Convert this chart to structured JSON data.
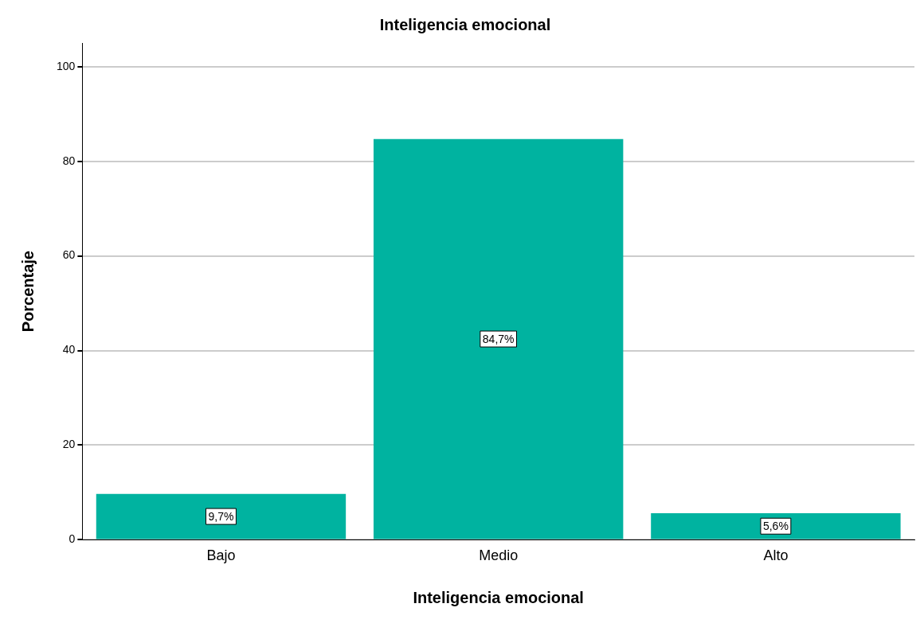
{
  "chart_data": {
    "type": "bar",
    "title": "Inteligencia emocional",
    "xlabel": "Inteligencia emocional",
    "ylabel": "Porcentaje",
    "categories": [
      "Bajo",
      "Medio",
      "Alto"
    ],
    "values": [
      9.7,
      84.7,
      5.6
    ],
    "value_labels": [
      "9,7%",
      "84,7%",
      "5,6%"
    ],
    "color": "#00b3a0",
    "ylim": [
      0,
      105
    ],
    "yticks": [
      0,
      20,
      40,
      60,
      80,
      100
    ],
    "grid": "y",
    "legend": false
  }
}
